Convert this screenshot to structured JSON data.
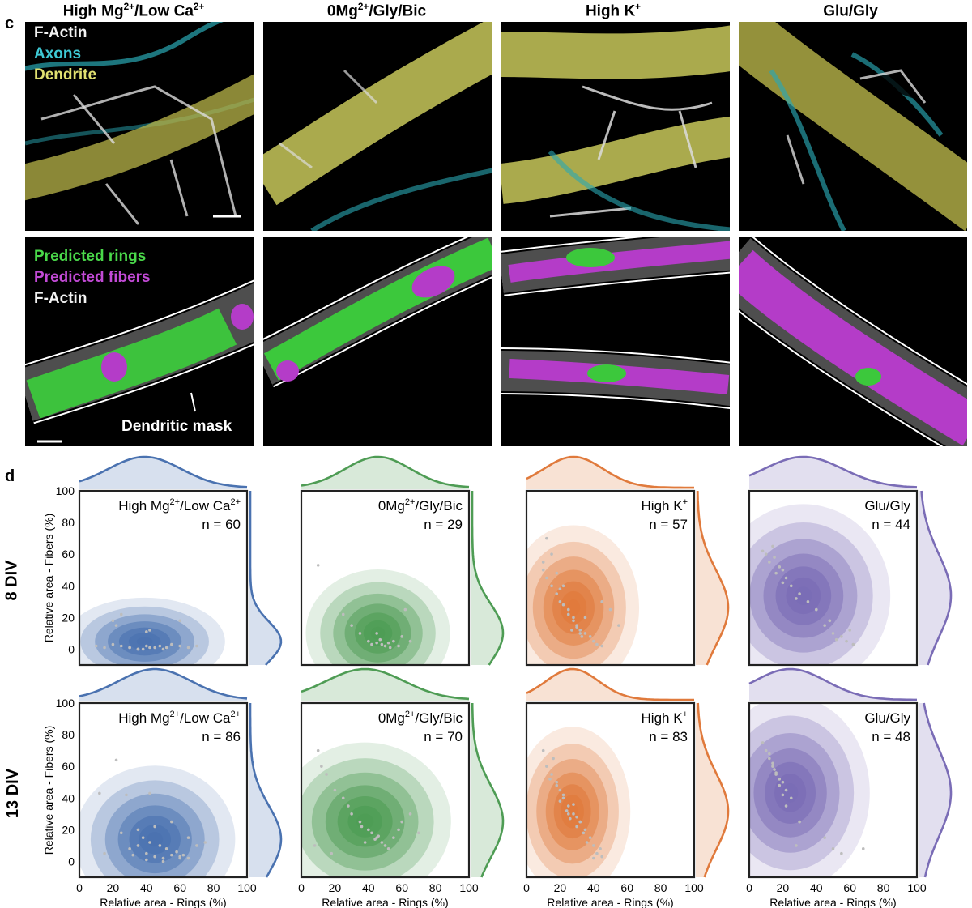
{
  "panel_c": {
    "letter": "c",
    "columns": [
      {
        "title": "High Mg",
        "sup1": "2+",
        "mid": "/Low Ca",
        "sup2": "2+"
      },
      {
        "title": "0Mg",
        "sup1": "2+",
        "mid": "/Gly/Bic",
        "sup2": ""
      },
      {
        "title": "High K",
        "sup1": "+",
        "mid": "",
        "sup2": ""
      },
      {
        "title": "Glu/Gly",
        "sup1": "",
        "mid": "",
        "sup2": ""
      }
    ],
    "top_legend": {
      "factin": "F-Actin",
      "axons": "Axons",
      "dendrite": "Dendrite"
    },
    "bottom_legend": {
      "rings": "Predicted rings",
      "fibers": "Predicted fibers",
      "factin": "F-Actin"
    },
    "mask_label": "Dendritic mask",
    "colors": {
      "factin": "#e8e8e8",
      "axons": "#3ec9d4",
      "dendrite": "#d8d86a",
      "rings": "#3cc83c",
      "fibers": "#b43cc8"
    }
  },
  "panel_d": {
    "letter": "d",
    "row_labels": [
      "8 DIV",
      "13 DIV"
    ],
    "xlabel": "Relative area - Rings (%)",
    "ylabel": "Relative area - Fibers (%)"
  },
  "chart_data": [
    {
      "type": "scatter",
      "row": "8 DIV",
      "condition_main": "High Mg",
      "condition_sup1": "2+",
      "condition_mid": "/Low Ca",
      "condition_sup2": "2+",
      "n_label": "n = 60",
      "color": "#4a72b0",
      "xlim": [
        0,
        100
      ],
      "ylim": [
        -10,
        100
      ],
      "xticks": [
        0,
        20,
        40,
        60,
        80,
        100
      ],
      "yticks": [
        0,
        20,
        40,
        60,
        80,
        100
      ],
      "xlabel": "Relative area - Rings (%)",
      "ylabel": "Relative area - Fibers (%)",
      "x": [
        10,
        15,
        20,
        25,
        30,
        35,
        40,
        45,
        50,
        55,
        60,
        65,
        70,
        38,
        42,
        48,
        52,
        20,
        25,
        22,
        40,
        42,
        60,
        30,
        35
      ],
      "y": [
        2,
        1,
        3,
        2,
        1,
        0,
        2,
        1,
        0,
        3,
        2,
        1,
        2,
        0,
        1,
        2,
        1,
        18,
        22,
        15,
        11,
        12,
        18,
        1,
        0
      ]
    },
    {
      "type": "scatter",
      "row": "8 DIV",
      "condition_main": "0Mg",
      "condition_sup1": "2+",
      "condition_mid": "/Gly/Bic",
      "condition_sup2": "",
      "n_label": "n = 29",
      "color": "#4e9c54",
      "xlim": [
        0,
        100
      ],
      "ylim": [
        -10,
        100
      ],
      "xticks": [
        0,
        20,
        40,
        60,
        80,
        100
      ],
      "yticks": [
        0,
        20,
        40,
        60,
        80,
        100
      ],
      "xlabel": "Relative area - Rings (%)",
      "ylabel": "Relative area - Fibers (%)",
      "x": [
        10,
        25,
        35,
        40,
        45,
        48,
        50,
        52,
        55,
        58,
        60,
        62,
        42,
        47,
        53,
        45,
        65,
        30
      ],
      "y": [
        53,
        22,
        10,
        5,
        4,
        3,
        2,
        4,
        5,
        2,
        8,
        25,
        3,
        6,
        1,
        10,
        5,
        15
      ]
    },
    {
      "type": "scatter",
      "row": "8 DIV",
      "condition_main": "High K",
      "condition_sup1": "+",
      "condition_mid": "",
      "condition_sup2": "",
      "n_label": "n = 57",
      "color": "#e07a3c",
      "xlim": [
        0,
        100
      ],
      "ylim": [
        -10,
        100
      ],
      "xticks": [
        0,
        20,
        40,
        60,
        80,
        100
      ],
      "yticks": [
        0,
        20,
        40,
        60,
        80,
        100
      ],
      "xlabel": "Relative area - Rings (%)",
      "ylabel": "Relative area - Fibers (%)",
      "x": [
        10,
        12,
        15,
        18,
        20,
        22,
        25,
        28,
        30,
        32,
        35,
        38,
        40,
        42,
        45,
        28,
        30,
        32,
        25,
        20,
        18,
        15,
        35,
        45,
        50,
        55,
        22,
        27,
        33,
        12,
        10
      ],
      "y": [
        55,
        45,
        40,
        35,
        30,
        28,
        25,
        20,
        15,
        12,
        10,
        8,
        5,
        3,
        2,
        18,
        14,
        10,
        22,
        38,
        48,
        60,
        20,
        30,
        25,
        15,
        40,
        12,
        8,
        70,
        50
      ]
    },
    {
      "type": "scatter",
      "row": "8 DIV",
      "condition_main": "Glu/Gly",
      "condition_sup1": "",
      "condition_mid": "",
      "condition_sup2": "",
      "n_label": "n = 44",
      "color": "#7a6cb6",
      "xlim": [
        0,
        100
      ],
      "ylim": [
        -10,
        100
      ],
      "xticks": [
        0,
        20,
        40,
        60,
        80,
        100
      ],
      "yticks": [
        0,
        20,
        40,
        60,
        80,
        100
      ],
      "xlabel": "Relative area - Rings (%)",
      "ylabel": "Relative area - Fibers (%)",
      "x": [
        10,
        12,
        15,
        18,
        20,
        22,
        25,
        30,
        35,
        40,
        45,
        50,
        55,
        58,
        60,
        62,
        14,
        16,
        28,
        48,
        52,
        20,
        8
      ],
      "y": [
        60,
        55,
        58,
        52,
        50,
        45,
        40,
        35,
        30,
        25,
        15,
        10,
        8,
        5,
        12,
        3,
        65,
        48,
        32,
        18,
        6,
        42,
        62
      ]
    },
    {
      "type": "scatter",
      "row": "13 DIV",
      "condition_main": "High Mg",
      "condition_sup1": "2+",
      "condition_mid": "/Low Ca",
      "condition_sup2": "2+",
      "n_label": "n = 86",
      "color": "#4a72b0",
      "xlim": [
        0,
        100
      ],
      "ylim": [
        -10,
        100
      ],
      "xticks": [
        0,
        20,
        40,
        60,
        80,
        100
      ],
      "yticks": [
        0,
        20,
        40,
        60,
        80,
        100
      ],
      "xlabel": "Relative area - Rings (%)",
      "ylabel": "Relative area - Fibers (%)",
      "x": [
        12,
        22,
        28,
        42,
        15,
        30,
        35,
        40,
        45,
        50,
        55,
        60,
        65,
        38,
        42,
        48,
        52,
        58,
        62,
        70,
        75,
        25,
        35,
        45,
        55,
        65,
        40,
        50,
        60,
        32
      ],
      "y": [
        43,
        64,
        42,
        43,
        5,
        8,
        10,
        5,
        3,
        2,
        4,
        3,
        2,
        15,
        12,
        10,
        8,
        6,
        4,
        10,
        12,
        18,
        20,
        22,
        25,
        15,
        1,
        0,
        2,
        4
      ]
    },
    {
      "type": "scatter",
      "row": "13 DIV",
      "condition_main": "0Mg",
      "condition_sup1": "2+",
      "condition_mid": "/Gly/Bic",
      "condition_sup2": "",
      "n_label": "n = 70",
      "color": "#4e9c54",
      "xlim": [
        0,
        100
      ],
      "ylim": [
        -10,
        100
      ],
      "xticks": [
        0,
        20,
        40,
        60,
        80,
        100
      ],
      "yticks": [
        0,
        20,
        40,
        60,
        80,
        100
      ],
      "xlabel": "Relative area - Rings (%)",
      "ylabel": "Relative area - Fibers (%)",
      "x": [
        10,
        12,
        15,
        20,
        25,
        30,
        35,
        40,
        42,
        45,
        48,
        50,
        52,
        55,
        58,
        60,
        65,
        70,
        38,
        44,
        46,
        36,
        28,
        18,
        8
      ],
      "y": [
        70,
        60,
        55,
        45,
        40,
        30,
        25,
        20,
        18,
        15,
        12,
        10,
        8,
        15,
        20,
        25,
        30,
        18,
        12,
        14,
        16,
        22,
        35,
        5,
        10
      ]
    },
    {
      "type": "scatter",
      "row": "13 DIV",
      "condition_main": "High K",
      "condition_sup1": "+",
      "condition_mid": "",
      "condition_sup2": "",
      "n_label": "n = 83",
      "color": "#e07a3c",
      "xlim": [
        0,
        100
      ],
      "ylim": [
        -10,
        100
      ],
      "xticks": [
        0,
        20,
        40,
        60,
        80,
        100
      ],
      "yticks": [
        0,
        20,
        40,
        60,
        80,
        100
      ],
      "xlabel": "Relative area - Rings (%)",
      "ylabel": "Relative area - Fibers (%)",
      "x": [
        10,
        12,
        15,
        18,
        20,
        22,
        25,
        28,
        30,
        32,
        35,
        38,
        40,
        42,
        45,
        20,
        24,
        26,
        30,
        34,
        18,
        22,
        28,
        36,
        44,
        16,
        14,
        25,
        32,
        40
      ],
      "y": [
        70,
        60,
        55,
        50,
        45,
        40,
        35,
        30,
        28,
        25,
        20,
        15,
        10,
        5,
        3,
        38,
        32,
        27,
        22,
        18,
        48,
        42,
        36,
        12,
        8,
        65,
        52,
        30,
        25,
        2
      ]
    },
    {
      "type": "scatter",
      "row": "13 DIV",
      "condition_main": "Glu/Gly",
      "condition_sup1": "",
      "condition_mid": "",
      "condition_sup2": "",
      "n_label": "n = 48",
      "color": "#7a6cb6",
      "xlim": [
        0,
        100
      ],
      "ylim": [
        -10,
        100
      ],
      "xticks": [
        0,
        20,
        40,
        60,
        80,
        100
      ],
      "yticks": [
        0,
        20,
        40,
        60,
        80,
        100
      ],
      "xlabel": "Relative area - Rings (%)",
      "ylabel": "Relative area - Fibers (%)",
      "x": [
        8,
        10,
        12,
        14,
        15,
        16,
        18,
        20,
        22,
        25,
        12,
        14,
        16,
        18,
        20,
        30,
        45,
        50,
        55,
        68,
        22,
        28
      ],
      "y": [
        75,
        70,
        65,
        60,
        58,
        55,
        52,
        50,
        45,
        40,
        68,
        62,
        56,
        48,
        42,
        25,
        15,
        8,
        5,
        8,
        35,
        10
      ]
    }
  ]
}
